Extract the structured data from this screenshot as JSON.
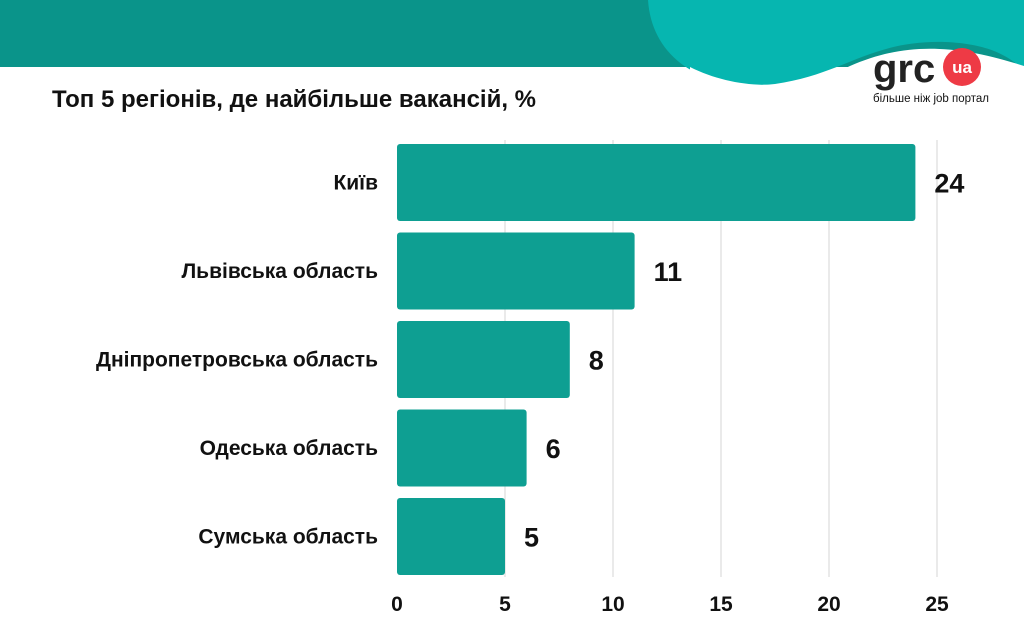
{
  "colors": {
    "bar": "#0e9f92",
    "header_dark": "#0a948a",
    "wave_light": "#06b6b0",
    "wave_mid": "#32a8a2",
    "grid": "#d6d6d6",
    "text": "#111111",
    "logo_badge": "#ee3a45"
  },
  "logo": {
    "text": "grc",
    "badge": "ua",
    "tagline": "більше ніж job портал"
  },
  "chart_data": {
    "type": "bar",
    "orientation": "horizontal",
    "title": "Топ 5 регіонів, де найбільше вакансій, %",
    "categories": [
      "Київ",
      "Львівська область",
      "Дніпропетровська область",
      "Одеська область",
      "Сумська область"
    ],
    "values": [
      24,
      11,
      8,
      6,
      5
    ],
    "value_labels": [
      "24",
      "11",
      "8",
      "6",
      "5"
    ],
    "xlim": [
      0,
      25
    ],
    "xticks": [
      0,
      5,
      10,
      15,
      20,
      25
    ],
    "xtick_labels": [
      "0",
      "5",
      "10",
      "15",
      "20",
      "25"
    ],
    "grid": "vertical",
    "legend": "none"
  }
}
